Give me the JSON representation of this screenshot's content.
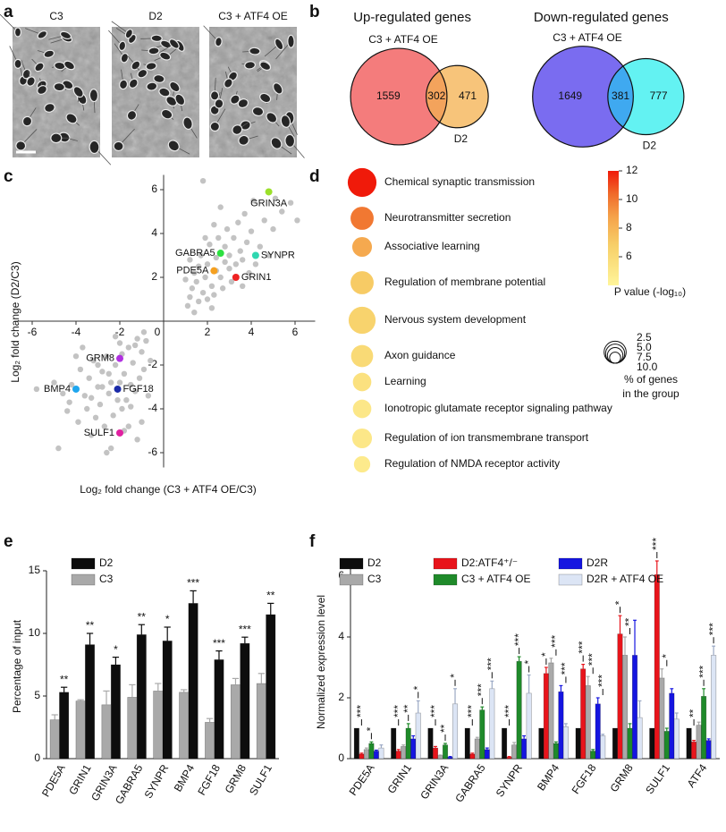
{
  "chart_data": [
    {
      "label": "a",
      "type": "image",
      "titles": [
        "C3",
        "D2",
        "C3 + ATF4 OE"
      ]
    },
    {
      "label": "b",
      "type": "venn",
      "charts": [
        {
          "title": "Up-regulated genes",
          "sets": [
            "C3 + ATF4 OE",
            "D2"
          ],
          "values": [
            1559,
            302,
            471
          ],
          "colors": [
            "#f47c7c",
            "#f7c47a",
            "#f3a35c"
          ]
        },
        {
          "title": "Down-regulated genes",
          "sets": [
            "C3 + ATF4 OE",
            "D2"
          ],
          "values": [
            1649,
            381,
            777
          ],
          "colors": [
            "#7a6cf0",
            "#63f2f2",
            "#3fa9f0"
          ]
        }
      ]
    },
    {
      "label": "c",
      "type": "scatter",
      "xlabel": "Log₂ fold change (C3 + ATF4 OE/C3)",
      "ylabel": "Log₂ fold change (D2/C3)",
      "xlim": [
        -7,
        7
      ],
      "ylim": [
        -7,
        7
      ],
      "xticks": [
        -6,
        -4,
        -2,
        0,
        2,
        4,
        6
      ],
      "yticks": [
        -6,
        -4,
        -2,
        2,
        4,
        6
      ],
      "series": [
        {
          "color": "#c3c3c3",
          "x": [
            1.2,
            1.5,
            1.8,
            2.0,
            2.2,
            2.4,
            2.6,
            2.8,
            3.0,
            3.2,
            1.4,
            1.7,
            2.1,
            2.5,
            2.9,
            3.4,
            3.6,
            3.8,
            4.0,
            4.4,
            4.6,
            5.0,
            5.4,
            5.8,
            6.1,
            1.1,
            1.3,
            1.6,
            1.9,
            2.3,
            2.7,
            3.1,
            3.3,
            3.5,
            3.9,
            4.2,
            1.0,
            1.2,
            1.6,
            2.0,
            2.4,
            2.8,
            3.0,
            3.7,
            4.1,
            2.3,
            1.9,
            2.6,
            1.8,
            5.1,
            2.2,
            1.4,
            3.6,
            4.8,
            -0.8,
            -1.0,
            -1.2,
            -1.4,
            -1.6,
            -1.8,
            -2.0,
            -2.2,
            -2.4,
            -2.6,
            -2.8,
            -3.0,
            -3.2,
            -3.4,
            -3.6,
            -3.8,
            -4.2,
            -4.6,
            -5.0,
            -5.8,
            -1.1,
            -1.3,
            -1.5,
            -1.7,
            -1.9,
            -2.1,
            -2.3,
            -2.5,
            -2.7,
            -2.9,
            -3.1,
            -3.3,
            -3.5,
            -3.9,
            -4.4,
            -4.8,
            -1.0,
            -1.2,
            -1.6,
            -2.4,
            -0.6,
            -0.9,
            -1.3,
            -1.9,
            -2.5,
            -3.0,
            -3.7,
            -4.0,
            -2.2,
            -1.5,
            -2.0,
            -2.8,
            -3.3,
            -0.7,
            -1.8,
            -2.6,
            -4.3,
            -0.9
          ],
          "values": [
            1.1,
            1.8,
            1.3,
            2.6,
            1.6,
            2.9,
            2.0,
            3.4,
            2.4,
            3.8,
            2.2,
            3.0,
            3.5,
            3.8,
            4.2,
            4.5,
            2.8,
            3.6,
            4.1,
            3.4,
            4.6,
            4.2,
            5.0,
            5.4,
            4.6,
            0.7,
            1.5,
            0.9,
            2.0,
            1.2,
            1.5,
            1.8,
            2.6,
            3.2,
            2.2,
            2.6,
            1.9,
            2.8,
            2.5,
            1.0,
            2.3,
            2.7,
            3.0,
            4.9,
            5.5,
            4.4,
            3.8,
            5.2,
            6.4,
            5.6,
            0.6,
            0.4,
            1.6,
            3.0,
            -0.9,
            -1.4,
            -0.8,
            -1.9,
            -1.2,
            -2.4,
            -1.0,
            -2.0,
            -2.8,
            -1.6,
            -2.3,
            -3.0,
            -1.8,
            -2.6,
            -3.4,
            -2.2,
            -2.9,
            -3.3,
            -2.8,
            -3.1,
            -2.6,
            -3.2,
            -2.9,
            -3.6,
            -4.0,
            -3.6,
            -4.3,
            -3.3,
            -4.8,
            -3.8,
            -4.4,
            -5.2,
            -4.0,
            -4.6,
            -4.1,
            -5.8,
            -4.6,
            -5.4,
            -4.8,
            -5.8,
            -1.8,
            -2.2,
            -1.1,
            -1.5,
            -2.4,
            -2.0,
            -1.2,
            -1.6,
            -0.7,
            -3.9,
            -2.8,
            -3.0,
            -3.5,
            -3.4,
            -5.0,
            -6.0,
            -3.7,
            -0.5
          ]
        },
        {
          "name": "GRIN3A",
          "color": "#9be02a",
          "x": [
            4.8
          ],
          "values": [
            5.9
          ]
        },
        {
          "name": "GABRA5",
          "color": "#2de040",
          "x": [
            2.6
          ],
          "values": [
            3.1
          ]
        },
        {
          "name": "SYNPR",
          "color": "#2fd7b0",
          "x": [
            4.2
          ],
          "values": [
            3.0
          ]
        },
        {
          "name": "PDE5A",
          "color": "#f5a020",
          "x": [
            2.3
          ],
          "values": [
            2.3
          ]
        },
        {
          "name": "GRIN1",
          "color": "#ee2222",
          "x": [
            3.3
          ],
          "values": [
            2.0
          ]
        },
        {
          "name": "GRM8",
          "color": "#b030e0",
          "x": [
            -2.0
          ],
          "values": [
            -1.7
          ]
        },
        {
          "name": "BMP4",
          "color": "#1ea6ee",
          "x": [
            -4.0
          ],
          "values": [
            -3.1
          ]
        },
        {
          "name": "FGF18",
          "color": "#1a2aa8",
          "x": [
            -2.1
          ],
          "values": [
            -3.1
          ]
        },
        {
          "name": "SULF1",
          "color": "#e020a0",
          "x": [
            -2.0
          ],
          "values": [
            -5.1
          ]
        }
      ]
    },
    {
      "label": "d",
      "type": "bubble",
      "categories": [
        "Chemical synaptic transmission",
        "Neurotransmitter secretion",
        "Associative learning",
        "Regulation of membrane potential",
        "Nervous system development",
        "Axon guidance",
        "Learning",
        "Ionotropic glutamate receptor signaling pathway",
        "Regulation of ion transmembrane transport",
        "Regulation of NMDA receptor activity"
      ],
      "values": [
        12,
        10,
        8.5,
        7,
        6.5,
        6,
        5.5,
        5,
        5,
        4.8
      ],
      "sizes": [
        17,
        11,
        8,
        11,
        15,
        10,
        7,
        7,
        8,
        5.5
      ],
      "clim": [
        4,
        12
      ],
      "cticks": [
        6,
        8,
        10,
        12
      ],
      "colorbar_label": "P value (-log₁₀)",
      "size_ticks": [
        2.5,
        {
          "value": 5,
          "label": "5.0"
        },
        7.5,
        {
          "value": 10,
          "label": "10.0"
        }
      ],
      "size_label": [
        "% of genes",
        "in the group"
      ]
    },
    {
      "label": "e",
      "type": "bar",
      "ylabel": "Percentage of input",
      "categories": [
        "PDE5A",
        "GRIN1",
        "GRIN3A",
        "GABRA5",
        "SYNPR",
        "BMP4",
        "FGF18",
        "GRM8",
        "SULF1"
      ],
      "ylim": [
        0,
        15
      ],
      "yticks": [
        0,
        5,
        10,
        15
      ],
      "series": [
        {
          "name": "D2",
          "color": "#0d0d0d",
          "values": [
            5.3,
            9.1,
            7.5,
            9.9,
            9.4,
            12.4,
            7.9,
            9.2,
            11.5
          ],
          "errors": [
            0.4,
            0.9,
            0.6,
            0.8,
            1.1,
            1.0,
            0.7,
            0.5,
            0.9
          ],
          "significance": [
            "**",
            "**",
            "*",
            "**",
            "*",
            "***",
            "***",
            "***",
            "**"
          ]
        },
        {
          "name": "C3",
          "color": "#a9a9a9",
          "values": [
            3.1,
            4.6,
            4.3,
            4.9,
            5.4,
            5.3,
            2.9,
            5.9,
            6.0
          ],
          "errors": [
            0.4,
            0.1,
            1.1,
            1.0,
            0.6,
            0.2,
            0.3,
            0.5,
            0.8
          ]
        }
      ]
    },
    {
      "label": "f",
      "type": "bar",
      "ylabel": "Normalized expression level",
      "categories": [
        "PDE5A",
        "GRIN1",
        "GRIN3A",
        "GABRA5",
        "SYNPR",
        "BMP4",
        "FGF18",
        "GRM8",
        "SULF1",
        "ATF4"
      ],
      "ylim": [
        0,
        6.5
      ],
      "yticks": [
        0,
        2,
        4,
        6
      ],
      "series": [
        {
          "name": "D2",
          "color": "#0d0d0d",
          "values": [
            1,
            1,
            1,
            1,
            1,
            1,
            1,
            1,
            1,
            1
          ]
        },
        {
          "name": "D2:ATF4⁺/⁻",
          "color": "#e8141b",
          "values": [
            0.15,
            0.25,
            0.35,
            0.15,
            0.05,
            2.8,
            2.95,
            4.1,
            6.05,
            0.55
          ],
          "errors": [
            0.03,
            0.05,
            0.05,
            0.03,
            0.02,
            0.2,
            0.15,
            0.6,
            0.45,
            0.05
          ],
          "significance": [
            "***",
            "***",
            "***",
            "***",
            "***",
            "*",
            "***",
            "*",
            "***",
            "**"
          ]
        },
        {
          "name": "C3",
          "color": "#a9a9a9",
          "values": [
            0.3,
            0.4,
            0.1,
            0.65,
            0.45,
            3.15,
            2.4,
            3.4,
            2.65,
            1.1
          ],
          "errors": [
            0.05,
            0.05,
            0.02,
            0.05,
            0.08,
            0.15,
            0.3,
            0.6,
            0.3,
            0.1
          ]
        },
        {
          "name": "C3 + ATF4 OE",
          "color": "#1f8a2a",
          "values": [
            0.5,
            1.0,
            0.45,
            1.6,
            3.2,
            0.5,
            0.25,
            1.0,
            0.9,
            2.05
          ],
          "errors": [
            0.05,
            0.15,
            0.05,
            0.1,
            0.15,
            0.05,
            0.05,
            0.15,
            0.1,
            0.25
          ],
          "significance": [
            "*",
            "**",
            "**",
            "***",
            "***",
            "***",
            "***",
            "**",
            "*",
            "***"
          ]
        },
        {
          "name": "D2R",
          "color": "#1515e0",
          "values": [
            0.25,
            0.65,
            0.05,
            0.3,
            0.65,
            2.2,
            1.8,
            3.4,
            2.15,
            0.6
          ],
          "errors": [
            0.03,
            0.1,
            0.02,
            0.05,
            0.1,
            0.2,
            0.2,
            1.15,
            0.15,
            0.05
          ]
        },
        {
          "name": "D2R + ATF4 OE",
          "color": "#dce5f5",
          "values": [
            0.35,
            1.5,
            1.8,
            2.3,
            2.15,
            1.05,
            0.75,
            1.35,
            1.3,
            3.4
          ],
          "errors": [
            0.1,
            0.4,
            0.5,
            0.25,
            0.6,
            0.1,
            0.05,
            0.55,
            0.2,
            0.3
          ],
          "significance": [
            null,
            "*",
            "*",
            "***",
            "*",
            "***",
            "***",
            null,
            null,
            "***"
          ]
        }
      ]
    }
  ]
}
